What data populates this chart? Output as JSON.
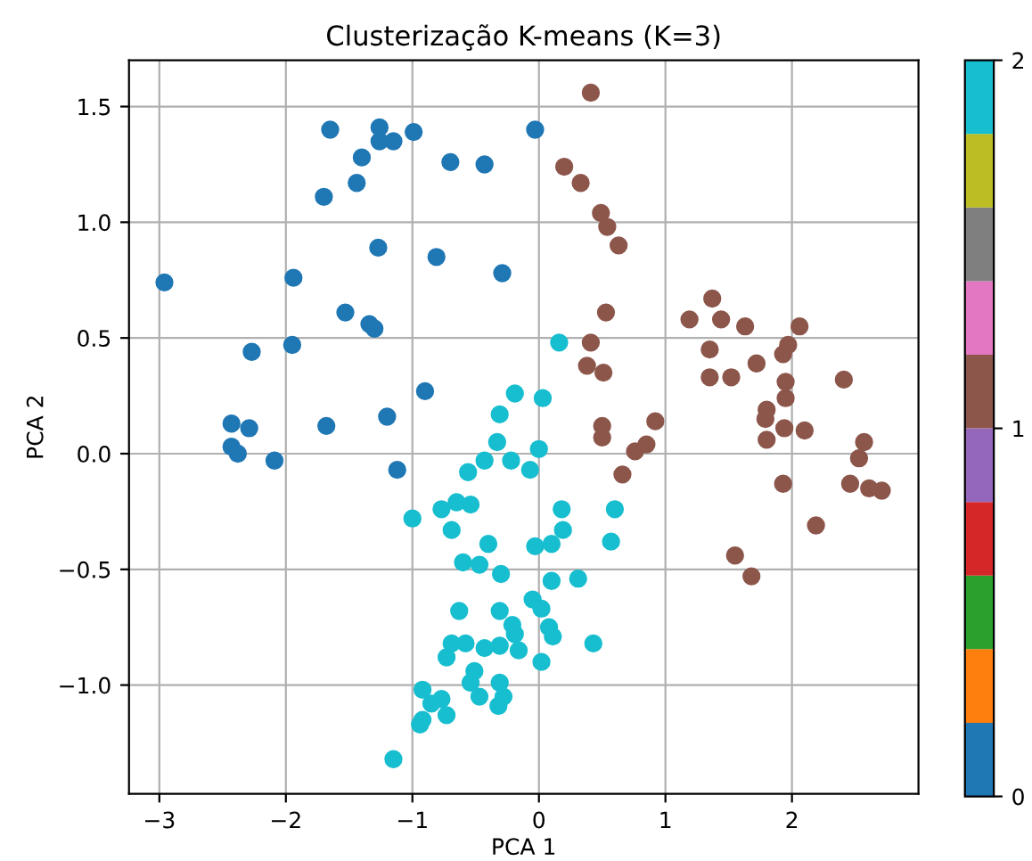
{
  "chart_data": {
    "type": "scatter",
    "title": "Clusterização K-means (K=3)",
    "xlabel": "PCA 1",
    "ylabel": "PCA 2",
    "x": [
      -2.96,
      -1.65,
      -1.26,
      -1.26,
      -1.15,
      -0.99,
      -1.4,
      -0.7,
      -0.43,
      -1.44,
      -1.7,
      -0.03,
      -1.27,
      -0.81,
      -0.29,
      -1.94,
      -1.53,
      -1.34,
      -1.3,
      -2.27,
      -1.95,
      -0.9,
      -1.2,
      -2.43,
      -2.29,
      -1.68,
      -2.43,
      -2.38,
      -2.09,
      -1.12,
      0.41,
      0.2,
      0.33,
      0.49,
      0.54,
      0.63,
      0.53,
      0.41,
      0.38,
      0.51,
      1.37,
      1.19,
      1.44,
      1.63,
      2.06,
      1.97,
      1.93,
      1.35,
      1.72,
      1.35,
      1.52,
      1.95,
      2.41,
      1.95,
      1.8,
      1.79,
      1.94,
      2.1,
      0.5,
      0.92,
      0.5,
      0.85,
      0.76,
      0.66,
      1.8,
      2.57,
      2.53,
      1.93,
      2.46,
      2.61,
      2.71,
      2.19,
      1.55,
      1.68,
      -0.19,
      -0.31,
      -0.33,
      0.16,
      0.03,
      -0.43,
      -0.22,
      -0.07,
      0.0,
      -0.56,
      -0.65,
      -0.54,
      -0.77,
      -1.0,
      -0.69,
      -0.4,
      -0.03,
      -0.6,
      -0.47,
      -0.3,
      -0.05,
      -0.63,
      -0.31,
      -0.21,
      -0.19,
      -0.69,
      -0.58,
      -0.43,
      -0.31,
      -0.16,
      -0.73,
      -0.51,
      -0.54,
      -0.31,
      -0.47,
      -0.28,
      -0.32,
      -0.92,
      -0.77,
      -0.85,
      -0.73,
      -0.92,
      -0.94,
      -1.15,
      0.18,
      0.6,
      0.19,
      0.57,
      0.1,
      0.1,
      0.31,
      0.02,
      0.08,
      0.11,
      0.43,
      0.02
    ],
    "values": [
      0.74,
      1.4,
      1.41,
      1.35,
      1.35,
      1.39,
      1.28,
      1.26,
      1.25,
      1.17,
      1.11,
      1.4,
      0.89,
      0.85,
      0.78,
      0.76,
      0.61,
      0.56,
      0.54,
      0.44,
      0.47,
      0.27,
      0.16,
      0.13,
      0.11,
      0.12,
      0.03,
      0.0,
      -0.03,
      -0.07,
      1.56,
      1.24,
      1.17,
      1.04,
      0.98,
      0.9,
      0.61,
      0.48,
      0.38,
      0.35,
      0.67,
      0.58,
      0.58,
      0.55,
      0.55,
      0.47,
      0.43,
      0.45,
      0.39,
      0.33,
      0.33,
      0.31,
      0.32,
      0.24,
      0.19,
      0.15,
      0.11,
      0.1,
      0.12,
      0.14,
      0.07,
      0.04,
      0.01,
      -0.09,
      0.06,
      0.05,
      -0.02,
      -0.13,
      -0.13,
      -0.15,
      -0.16,
      -0.31,
      -0.44,
      -0.53,
      0.26,
      0.17,
      0.05,
      0.48,
      0.24,
      -0.03,
      -0.03,
      -0.07,
      0.02,
      -0.08,
      -0.21,
      -0.22,
      -0.24,
      -0.28,
      -0.33,
      -0.39,
      -0.4,
      -0.47,
      -0.48,
      -0.52,
      -0.63,
      -0.68,
      -0.68,
      -0.74,
      -0.78,
      -0.82,
      -0.82,
      -0.84,
      -0.83,
      -0.85,
      -0.88,
      -0.94,
      -0.99,
      -0.99,
      -1.05,
      -1.05,
      -1.09,
      -1.02,
      -1.06,
      -1.08,
      -1.13,
      -1.15,
      -1.17,
      -1.32,
      -0.24,
      -0.24,
      -0.33,
      -0.38,
      -0.39,
      -0.55,
      -0.54,
      -0.67,
      -0.75,
      -0.79,
      -0.82,
      -0.9
    ],
    "cvalues": [
      0,
      0,
      0,
      0,
      0,
      0,
      0,
      0,
      0,
      0,
      0,
      0,
      0,
      0,
      0,
      0,
      0,
      0,
      0,
      0,
      0,
      0,
      0,
      0,
      0,
      0,
      0,
      0,
      0,
      0,
      1,
      1,
      1,
      1,
      1,
      1,
      1,
      1,
      1,
      1,
      1,
      1,
      1,
      1,
      1,
      1,
      1,
      1,
      1,
      1,
      1,
      1,
      1,
      1,
      1,
      1,
      1,
      1,
      1,
      1,
      1,
      1,
      1,
      1,
      1,
      1,
      1,
      1,
      1,
      1,
      1,
      1,
      1,
      1,
      2,
      2,
      2,
      2,
      2,
      2,
      2,
      2,
      2,
      2,
      2,
      2,
      2,
      2,
      2,
      2,
      2,
      2,
      2,
      2,
      2,
      2,
      2,
      2,
      2,
      2,
      2,
      2,
      2,
      2,
      2,
      2,
      2,
      2,
      2,
      2,
      2,
      2,
      2,
      2,
      2,
      2,
      2,
      2,
      2,
      2,
      2,
      2,
      2,
      2,
      2,
      2,
      2,
      2,
      2,
      2
    ],
    "clim": [
      0,
      2
    ],
    "cticks": [
      0,
      1,
      2
    ],
    "xlim": [
      -3.24,
      3.0
    ],
    "ylim": [
      -1.47,
      1.7
    ],
    "xticks": [
      {
        "value": -3,
        "label": "−3"
      },
      {
        "value": -2,
        "label": "−2"
      },
      {
        "value": -1,
        "label": "−1"
      },
      0,
      1,
      2
    ],
    "yticks": [
      {
        "value": -1,
        "label": "−1.0"
      },
      {
        "value": -0.5,
        "label": "−0.5"
      },
      {
        "value": 0,
        "label": "0.0"
      },
      {
        "value": 0.5,
        "label": "0.5"
      },
      {
        "value": 1,
        "label": "1.0"
      },
      {
        "value": 1.5,
        "label": "1.5"
      }
    ],
    "grid": true,
    "marker": "circle"
  }
}
